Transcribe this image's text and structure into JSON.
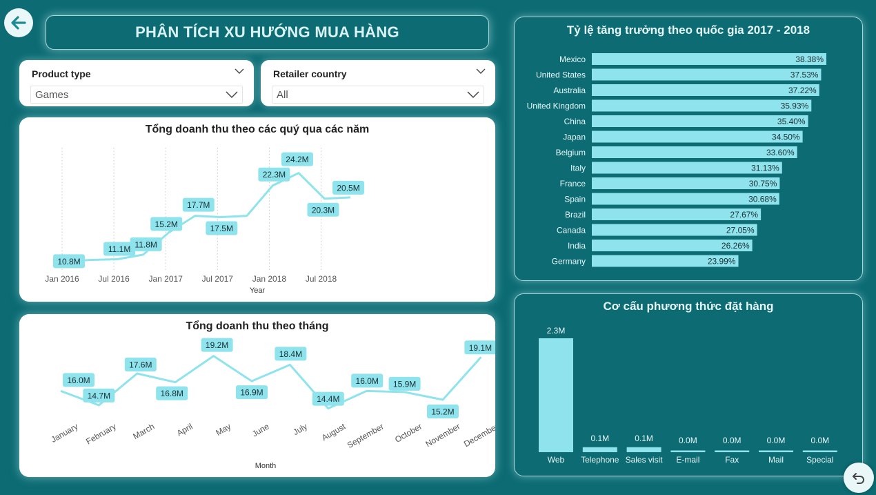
{
  "page": {
    "title": "PHÂN TÍCH XU HƯỚNG MUA HÀNG"
  },
  "icons": {
    "back": "arrow-left-icon",
    "reset": "undo-icon",
    "dropdown": "chevron-down-icon"
  },
  "filters": [
    {
      "label": "Product type",
      "value": "Games"
    },
    {
      "label": "Retailer country",
      "value": "All"
    }
  ],
  "colors": {
    "background": "#0c6b73",
    "accent": "#8ee3ec",
    "card": "#ffffff"
  },
  "chart_data": [
    {
      "type": "line",
      "title": "Tổng doanh thu theo các quý qua các năm",
      "xlabel": "Year",
      "ylabel": "",
      "x": [
        "2016-Q1",
        "2016-Q2",
        "2016-Q3",
        "2016-Q4",
        "2017-Q1",
        "2017-Q2",
        "2017-Q3",
        "2017-Q4",
        "2018-Q1",
        "2018-Q2",
        "2018-Q3",
        "2018-Q4"
      ],
      "values": [
        10.8,
        11.0,
        11.1,
        11.8,
        15.2,
        17.7,
        17.5,
        17.7,
        22.3,
        24.2,
        20.3,
        20.5
      ],
      "data_labels": [
        "10.8M",
        null,
        "11.1M",
        "11.8M",
        "15.2M",
        "17.7M",
        "17.5M",
        null,
        "22.3M",
        "24.2M",
        "20.3M",
        "20.5M"
      ],
      "x_ticks": [
        "Jan 2016",
        "Jul 2016",
        "Jan 2017",
        "Jul 2017",
        "Jan 2018",
        "Jul 2018"
      ],
      "unit": "M",
      "grid": "vertical dotted"
    },
    {
      "type": "line",
      "title": "Tổng doanh thu theo tháng",
      "xlabel": "Month",
      "ylabel": "",
      "categories": [
        "January",
        "February",
        "March",
        "April",
        "May",
        "June",
        "July",
        "August",
        "September",
        "October",
        "November",
        "December"
      ],
      "values": [
        16.0,
        14.7,
        17.6,
        16.8,
        19.2,
        16.9,
        18.4,
        14.4,
        16.0,
        15.9,
        15.2,
        19.1
      ],
      "data_labels": [
        "16.0M",
        "14.7M",
        "17.6M",
        "16.8M",
        "19.2M",
        "16.9M",
        "18.4M",
        "14.4M",
        "16.0M",
        "15.9M",
        "15.2M",
        "19.1M"
      ],
      "unit": "M",
      "grid": "none"
    },
    {
      "type": "bar",
      "orientation": "horizontal",
      "title": "Tỷ lệ tăng trưởng theo quốc gia 2017 - 2018",
      "categories": [
        "Mexico",
        "United States",
        "Australia",
        "United Kingdom",
        "China",
        "Japan",
        "Belgium",
        "Italy",
        "France",
        "Spain",
        "Brazil",
        "Canada",
        "India",
        "Germany"
      ],
      "values": [
        38.38,
        37.53,
        37.22,
        35.93,
        35.4,
        34.5,
        33.6,
        31.13,
        30.75,
        30.68,
        27.67,
        27.05,
        26.26,
        23.99
      ],
      "data_labels": [
        "38.38%",
        "37.53%",
        "37.22%",
        "35.93%",
        "35.40%",
        "34.50%",
        "33.60%",
        "31.13%",
        "30.75%",
        "30.68%",
        "27.67%",
        "27.05%",
        "26.26%",
        "23.99%"
      ],
      "unit": "%"
    },
    {
      "type": "bar",
      "title": "Cơ cấu phương thức đặt hàng",
      "categories": [
        "Web",
        "Telephone",
        "Sales visit",
        "E-mail",
        "Fax",
        "Mail",
        "Special"
      ],
      "values": [
        2.3,
        0.1,
        0.1,
        0.02,
        0.01,
        0.01,
        0.01
      ],
      "data_labels": [
        "2.3M",
        "0.1M",
        "0.1M",
        "0.0M",
        "0.0M",
        "0.0M",
        "0.0M"
      ],
      "unit": "M"
    }
  ]
}
